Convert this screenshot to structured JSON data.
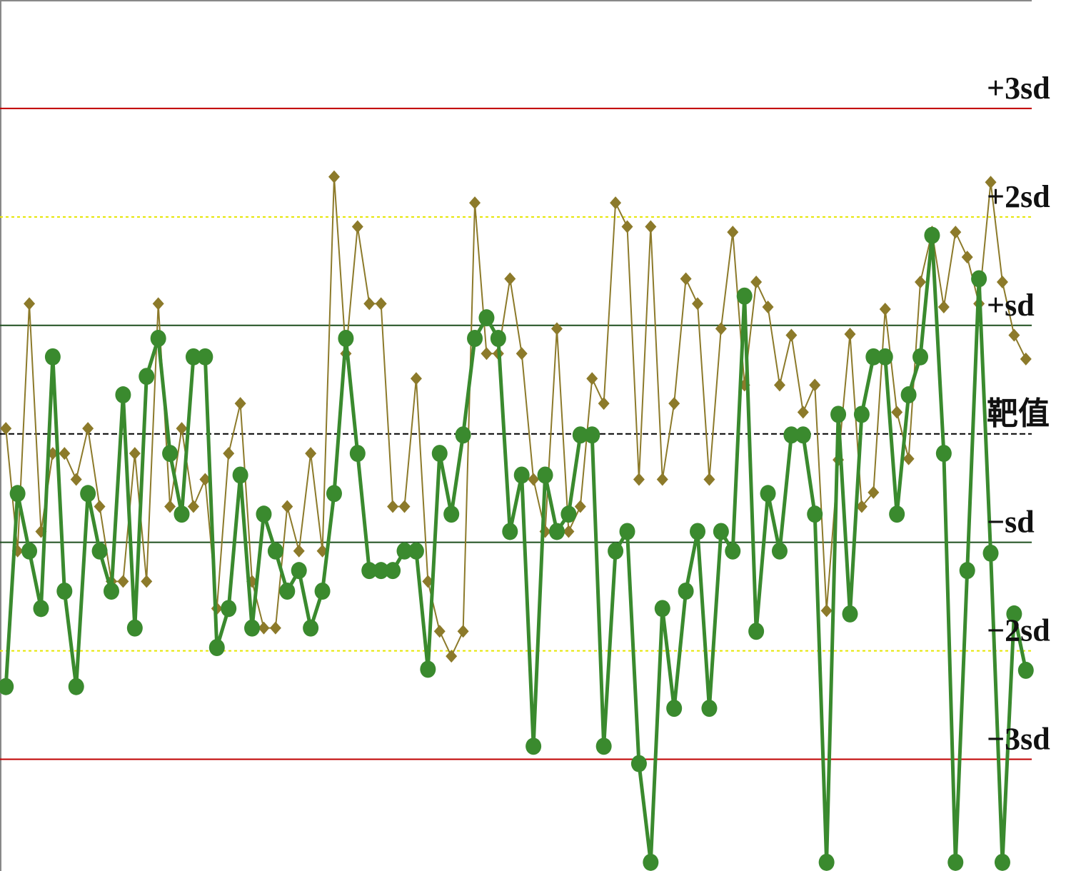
{
  "chart_data": {
    "type": "line",
    "x": [
      1,
      2,
      3,
      4,
      5,
      6,
      7,
      8,
      9,
      10,
      11,
      12,
      13,
      14,
      15,
      16,
      17,
      18,
      19,
      20,
      21,
      22,
      23,
      24,
      25,
      26,
      27,
      28,
      29,
      30,
      31,
      32,
      33,
      34,
      35,
      36,
      37,
      38,
      39,
      40,
      41,
      42,
      43,
      44,
      45,
      46,
      47,
      48,
      49,
      50,
      51,
      52,
      53,
      54,
      55,
      56,
      57,
      58,
      59,
      60,
      61,
      62,
      63,
      64,
      65,
      66,
      67,
      68,
      69,
      70,
      71,
      72,
      73,
      74,
      75,
      76,
      77,
      78,
      79,
      80,
      81,
      82,
      83,
      84,
      85,
      86,
      87,
      88
    ],
    "xlim": [
      0.5,
      88.5
    ],
    "ylim": [
      -4.03,
      4
    ],
    "yticks": [
      {
        "value": 3,
        "label": "+3sd"
      },
      {
        "value": 2,
        "label": "+2sd"
      },
      {
        "value": 1,
        "label": "+sd"
      },
      {
        "value": 0,
        "label": "靶值"
      },
      {
        "value": -1,
        "label": "−sd"
      },
      {
        "value": -2,
        "label": "−2sd"
      },
      {
        "value": -3,
        "label": "−3sd"
      }
    ],
    "reference_line_colors": [
      "#c00000",
      "#e6e600",
      "#1f4f1f",
      "#000000",
      "#1f4f1f",
      "#e6e600",
      "#c00000"
    ],
    "reference_line_styles": [
      "solid",
      "dotted",
      "solid",
      "dashed",
      "solid",
      "dotted",
      "solid"
    ],
    "series": [
      {
        "color": "#8c7a2a",
        "marker": "diamond",
        "values": [
          0.05,
          -1.08,
          1.2,
          -0.9,
          -0.18,
          -0.18,
          -0.42,
          0.05,
          -0.67,
          -1.36,
          -1.36,
          -0.18,
          -1.36,
          1.2,
          -0.67,
          0.05,
          -0.67,
          -0.42,
          -1.61,
          -0.18,
          0.28,
          -1.36,
          -1.79,
          -1.79,
          -0.67,
          -1.08,
          -0.18,
          -1.08,
          2.37,
          0.74,
          1.91,
          1.2,
          1.2,
          -0.67,
          -0.67,
          0.51,
          -1.36,
          -1.82,
          -2.05,
          -1.82,
          2.13,
          0.74,
          0.74,
          1.43,
          0.74,
          -0.42,
          -0.9,
          0.97,
          -0.9,
          -0.67,
          0.51,
          0.28,
          2.13,
          1.91,
          -0.42,
          1.91,
          -0.42,
          0.28,
          1.43,
          1.2,
          -0.42,
          0.97,
          1.86,
          0.45,
          1.4,
          1.17,
          0.45,
          0.91,
          0.2,
          0.45,
          -1.63,
          -0.24,
          0.92,
          -0.67,
          -0.54,
          1.15,
          0.2,
          -0.23,
          1.4,
          1.86,
          1.17,
          1.86,
          1.63,
          1.2,
          2.32,
          1.4,
          0.91,
          0.69
        ]
      },
      {
        "color": "#3a8a2e",
        "marker": "circle",
        "values": [
          -2.33,
          -0.55,
          -1.08,
          -1.61,
          0.71,
          -1.45,
          -2.33,
          -0.55,
          -1.08,
          -1.45,
          0.36,
          -1.79,
          0.53,
          0.88,
          -0.18,
          -0.74,
          0.71,
          0.71,
          -1.97,
          -1.61,
          -0.38,
          -1.79,
          -0.74,
          -1.08,
          -1.45,
          -1.26,
          -1.79,
          -1.45,
          -0.55,
          0.88,
          -0.18,
          -1.26,
          -1.26,
          -1.26,
          -1.08,
          -1.08,
          -2.17,
          -0.18,
          -0.74,
          -0.01,
          0.88,
          1.07,
          0.88,
          -0.9,
          -0.38,
          -2.88,
          -0.38,
          -0.9,
          -0.74,
          -0.01,
          -0.01,
          -2.88,
          -1.08,
          -0.9,
          -3.04,
          -3.95,
          -1.61,
          -2.53,
          -1.45,
          -0.9,
          -2.53,
          -0.9,
          -1.08,
          1.27,
          -1.82,
          -0.55,
          -1.08,
          -0.01,
          -0.01,
          -0.74,
          -3.95,
          0.18,
          -1.66,
          0.18,
          0.71,
          0.71,
          -0.74,
          0.36,
          0.71,
          1.83,
          -0.18,
          -3.95,
          -1.26,
          1.43,
          -1.1,
          -3.95,
          -1.66,
          -2.18
        ]
      }
    ]
  }
}
